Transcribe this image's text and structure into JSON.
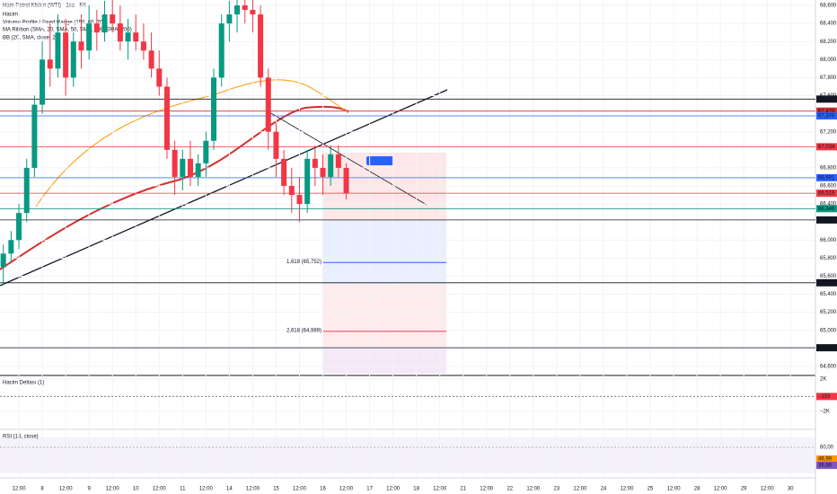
{
  "chart_data": {
    "type": "candlestick",
    "title": "Ham Petrol Kfsleri (WTI) · 1sa · FX",
    "indicators": [
      "Hacim",
      "Volume Profile / Fixed Range (150, 60, 70)",
      "MA Ribbon (SMA, 20, SMA, 50, SMA, 100, SMA, 200)",
      "BB (20, SMA, close, 2)"
    ],
    "up_color": "#089981",
    "down_color": "#f23645",
    "x": [
      -8,
      -4,
      0,
      4,
      8,
      12,
      16,
      20,
      24,
      28,
      32,
      36,
      40,
      44,
      48,
      52,
      56,
      60,
      64,
      68,
      72,
      76,
      80,
      84,
      88,
      92,
      96,
      100,
      104,
      108,
      112,
      116,
      120,
      124,
      128,
      132,
      136,
      140,
      144,
      148,
      152,
      156,
      160,
      164,
      168
    ],
    "open": [
      65.7,
      65.85,
      66.0,
      66.3,
      66.8,
      67.5,
      68.0,
      67.9,
      68.3,
      67.8,
      68.2,
      68.1,
      68.4,
      68.3,
      68.5,
      68.4,
      68.2,
      68.3,
      68.2,
      68.1,
      67.9,
      67.7,
      67.0,
      66.7,
      66.9,
      66.7,
      66.85,
      67.1,
      67.8,
      68.4,
      68.5,
      68.6,
      68.55,
      68.5,
      67.8,
      67.2,
      66.9,
      66.6,
      66.5,
      66.4,
      66.9,
      66.8,
      66.7,
      66.95,
      66.8
    ],
    "high": [
      65.95,
      66.1,
      66.4,
      66.9,
      67.6,
      68.2,
      68.4,
      68.5,
      68.45,
      68.3,
      68.5,
      68.6,
      68.55,
      68.65,
      68.7,
      68.6,
      68.45,
      68.5,
      68.4,
      68.3,
      68.1,
      67.8,
      67.1,
      67.0,
      67.1,
      66.95,
      67.2,
      67.9,
      68.5,
      68.65,
      68.7,
      68.7,
      68.7,
      68.6,
      67.9,
      67.3,
      67.0,
      66.8,
      66.7,
      67.0,
      67.05,
      66.95,
      67.05,
      67.05,
      66.85
    ],
    "low": [
      65.5,
      65.75,
      65.9,
      66.2,
      66.7,
      67.4,
      67.7,
      67.8,
      67.6,
      67.7,
      67.9,
      68.0,
      68.1,
      68.2,
      68.3,
      68.1,
      68.0,
      68.1,
      68.0,
      67.8,
      67.6,
      66.9,
      66.5,
      66.55,
      66.6,
      66.6,
      66.7,
      67.0,
      67.7,
      68.2,
      68.3,
      68.4,
      68.3,
      67.7,
      67.0,
      66.7,
      66.5,
      66.3,
      66.2,
      66.3,
      66.6,
      66.5,
      66.6,
      66.7,
      66.45
    ],
    "close": [
      65.85,
      66.0,
      66.3,
      66.8,
      67.5,
      68.0,
      67.9,
      68.3,
      67.8,
      68.2,
      68.1,
      68.4,
      68.3,
      68.5,
      68.4,
      68.2,
      68.3,
      68.2,
      68.1,
      67.9,
      67.7,
      67.0,
      66.7,
      66.9,
      66.7,
      66.85,
      67.1,
      67.8,
      68.4,
      68.5,
      68.6,
      68.55,
      68.5,
      67.8,
      67.2,
      66.9,
      66.6,
      66.5,
      66.4,
      66.9,
      66.8,
      66.7,
      66.95,
      66.8,
      66.52
    ],
    "xlim": [
      -9.7,
      408.8
    ],
    "xticks": [
      {
        "value": 0,
        "label": "12:00"
      },
      {
        "value": 12,
        "label": "8"
      },
      {
        "value": 24,
        "label": "12:00"
      },
      {
        "value": 36,
        "label": "9"
      },
      {
        "value": 48,
        "label": "12:00"
      },
      {
        "value": 60,
        "label": "10"
      },
      {
        "value": 72,
        "label": "12:00"
      },
      {
        "value": 84,
        "label": "11"
      },
      {
        "value": 96,
        "label": "12:00"
      },
      {
        "value": 108,
        "label": "14"
      },
      {
        "value": 120,
        "label": "12:00"
      },
      {
        "value": 132,
        "label": "15"
      },
      {
        "value": 144,
        "label": "12:00"
      },
      {
        "value": 156,
        "label": "16"
      },
      {
        "value": 168,
        "label": "12:00"
      },
      {
        "value": 180,
        "label": "17"
      },
      {
        "value": 192,
        "label": "12:00"
      },
      {
        "value": 204,
        "label": "18"
      },
      {
        "value": 216,
        "label": "12:00"
      },
      {
        "value": 228,
        "label": "21"
      },
      {
        "value": 240,
        "label": "12:00"
      },
      {
        "value": 252,
        "label": "22"
      },
      {
        "value": 264,
        "label": "12:00"
      },
      {
        "value": 276,
        "label": "23"
      },
      {
        "value": 288,
        "label": "12:00"
      },
      {
        "value": 300,
        "label": "24"
      },
      {
        "value": 312,
        "label": "12:00"
      },
      {
        "value": 324,
        "label": "25"
      },
      {
        "value": 336,
        "label": "12:00"
      },
      {
        "value": 348,
        "label": "28"
      },
      {
        "value": 360,
        "label": "12:00"
      },
      {
        "value": 372,
        "label": "29"
      },
      {
        "value": 384,
        "label": "12:00"
      },
      {
        "value": 396,
        "label": "30"
      }
    ],
    "ylim": [
      64.5,
      68.66
    ],
    "yticks": [
      {
        "value": 68.6,
        "label": "68,600"
      },
      {
        "value": 68.4,
        "label": "68,400"
      },
      {
        "value": 68.2,
        "label": "68,200"
      },
      {
        "value": 68.0,
        "label": "68,000"
      },
      {
        "value": 67.8,
        "label": "67,800"
      },
      {
        "value": 67.6,
        "label": "67,600"
      },
      {
        "value": 67.2,
        "label": "67,200"
      },
      {
        "value": 66.8,
        "label": "66,800"
      },
      {
        "value": 66.6,
        "label": "66,600"
      },
      {
        "value": 66.4,
        "label": "66,400"
      },
      {
        "value": 66.0,
        "label": "66,000"
      },
      {
        "value": 65.8,
        "label": "65,800"
      },
      {
        "value": 65.6,
        "label": "65,600"
      },
      {
        "value": 65.4,
        "label": "65,400"
      },
      {
        "value": 65.2,
        "label": "65,200"
      },
      {
        "value": 65.0,
        "label": "65,000"
      },
      {
        "value": 64.8,
        "label": "64,800"
      },
      {
        "value": 64.6,
        "label": "64,600"
      }
    ],
    "levels": [
      {
        "value": 67.562,
        "label": "67,562",
        "color": "#131722"
      },
      {
        "value": 67.429,
        "label": "67,429",
        "color": "#d32f2f"
      },
      {
        "value": 67.376,
        "label": "67,376",
        "color": "#2962ff"
      },
      {
        "value": 67.034,
        "label": "67,034",
        "color": "#f23645"
      },
      {
        "value": 66.691,
        "label": "66,691",
        "color": "#2962ff"
      },
      {
        "value": 66.519,
        "label": "66,519",
        "color": "#f23645"
      },
      {
        "value": 66.348,
        "label": "66,348",
        "color": "#089981"
      },
      {
        "value": 66.223,
        "label": "66,223",
        "color": "#131722"
      },
      {
        "value": 65.527,
        "label": "65,527",
        "color": "#131722"
      },
      {
        "value": 64.807,
        "label": "64,807",
        "color": "#131722"
      }
    ],
    "fib_labels": [
      {
        "value": 65.752,
        "label": "1,618 (65,752)",
        "color": "#2962ff"
      },
      {
        "value": 64.989,
        "label": "2,618 (64,989)",
        "color": "#f23645"
      }
    ],
    "delta": {
      "title": "Hacim Deltası (1)",
      "ylim": [
        -4220,
        2450
      ],
      "yticks": [
        {
          "value": 2000,
          "label": "2K"
        },
        {
          "value": -2000,
          "label": "−2K"
        }
      ],
      "last": {
        "value": -153,
        "label": "−153"
      }
    },
    "rsi": {
      "title": "RSI (14, close)",
      "ylim": [
        26,
        78
      ],
      "yticks": [
        {
          "value": 60,
          "label": "60,00"
        }
      ],
      "last": [
        {
          "value": 46.99,
          "label": "46,99",
          "color": "#ff9800"
        },
        {
          "value": 39.88,
          "label": "39,88",
          "color": "#7e57c2"
        }
      ]
    }
  }
}
